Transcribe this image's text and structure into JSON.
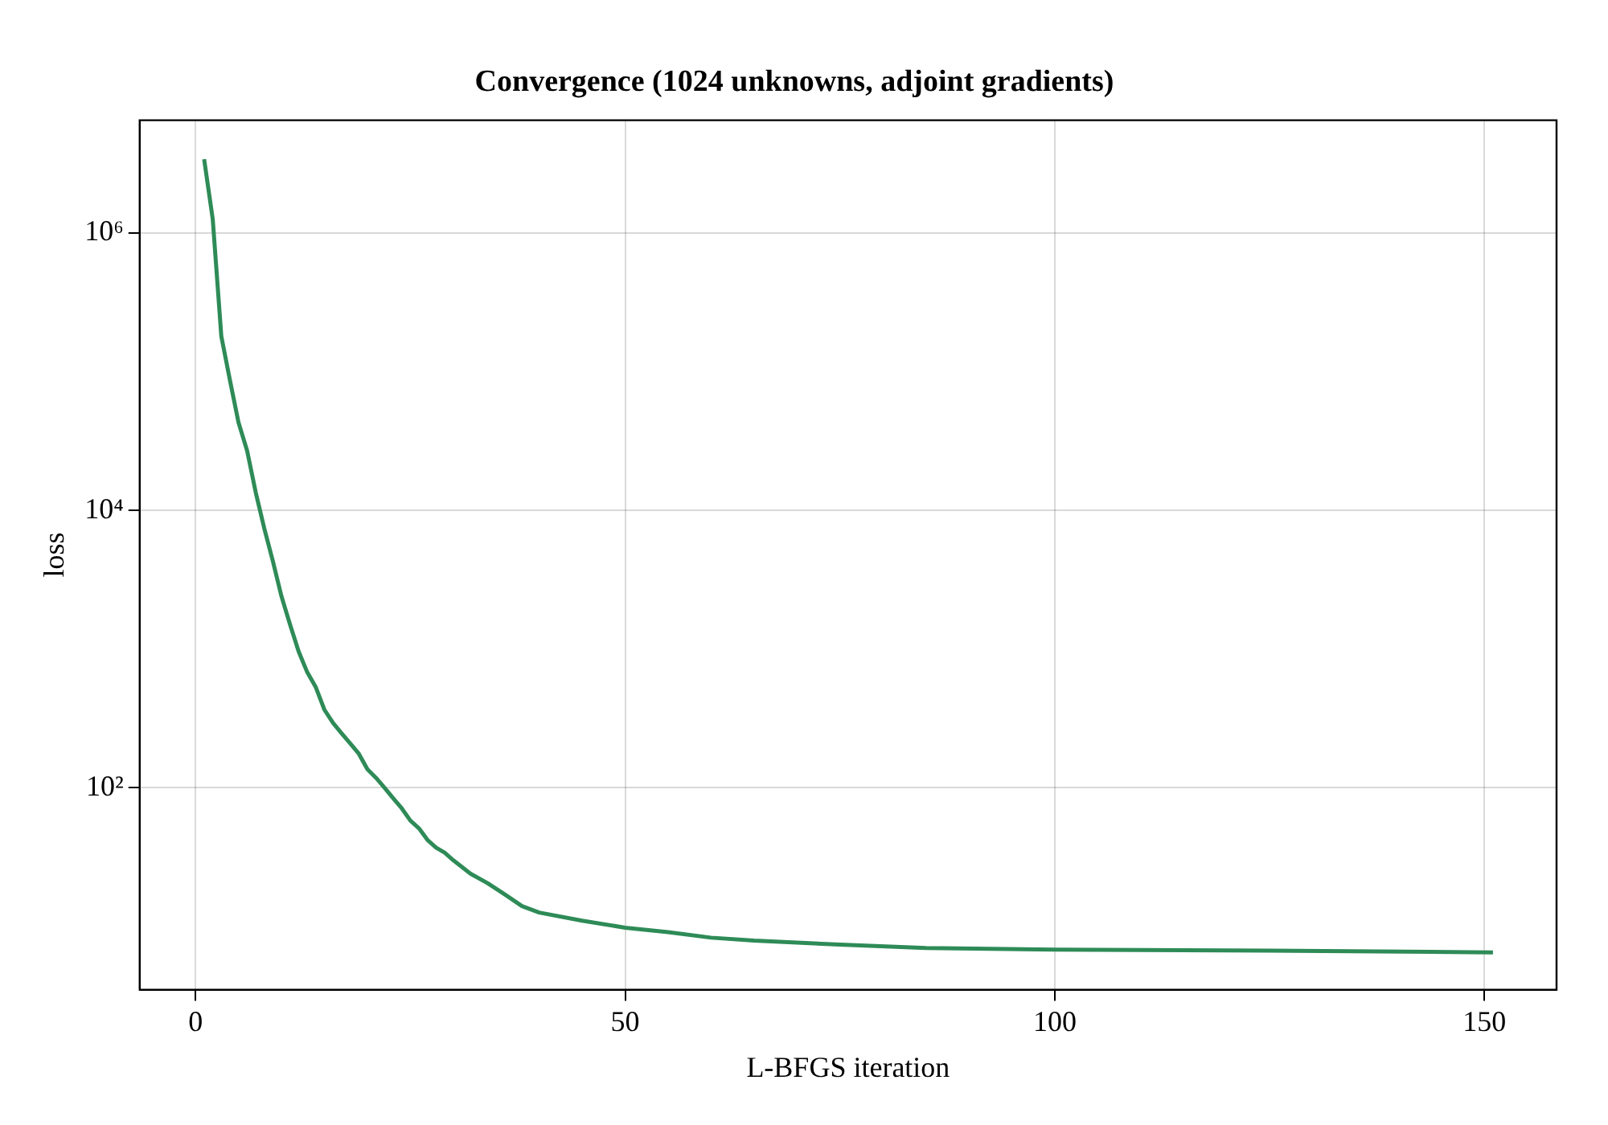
{
  "chart_data": {
    "type": "line",
    "title": "Convergence (1024 unknowns, adjoint gradients)",
    "xlabel": "L-BFGS iteration",
    "ylabel": "loss",
    "x": [
      1,
      2,
      3,
      4,
      5,
      6,
      7,
      8,
      9,
      10,
      11,
      12,
      13,
      14,
      15,
      16,
      17,
      18,
      19,
      20,
      21,
      22,
      23,
      24,
      25,
      26,
      27,
      28,
      29,
      30,
      32,
      34,
      36,
      38,
      40,
      45,
      50,
      55,
      60,
      65,
      75,
      85,
      100,
      125,
      151
    ],
    "series": [
      {
        "color": "#2e8b57",
        "values": [
          3400000,
          1260000,
          180000,
          87000,
          43000,
          27000,
          13500,
          7400,
          4300,
          2400,
          1500,
          960,
          680,
          530,
          365,
          293,
          247,
          209,
          176,
          136,
          118,
          100,
          84,
          71,
          58,
          51,
          42,
          37,
          34,
          30,
          24,
          20.5,
          17,
          14,
          12.6,
          11,
          9.8,
          9.1,
          8.3,
          7.9,
          7.4,
          7.0,
          6.8,
          6.7,
          6.5
        ]
      }
    ],
    "xlim": [
      -6.5,
      158.4
    ],
    "xticks": [
      0,
      50,
      100,
      150
    ],
    "ylim": [
      3.5,
      6500000
    ],
    "yticks": [
      {
        "value": 100,
        "label": "10²"
      },
      {
        "value": 10000,
        "label": "10⁴"
      },
      {
        "value": 1000000,
        "label": "10⁶"
      }
    ],
    "log": "y",
    "grid": true,
    "legend": false,
    "marker": "none",
    "line_style": "solid"
  }
}
